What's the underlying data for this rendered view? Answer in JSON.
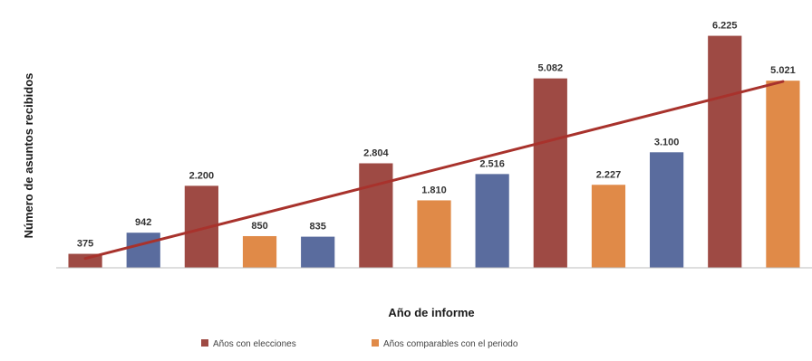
{
  "chart_data": {
    "type": "bar",
    "title": "",
    "xlabel": "Año de informe",
    "ylabel": "Número de asuntos recibidos",
    "categories": [
      "",
      "",
      "",
      "",
      "",
      "",
      "",
      "",
      "",
      "",
      "",
      "",
      ""
    ],
    "values": [
      375,
      942,
      2200,
      850,
      835,
      2804,
      1810,
      2516,
      5082,
      2227,
      3100,
      6225,
      5021
    ],
    "value_labels": [
      "375",
      "942",
      "2.200",
      "850",
      "835",
      "2.804",
      "1.810",
      "2.516",
      "5.082",
      "2.227",
      "3.100",
      "6.225",
      "5.021"
    ],
    "bar_groups": [
      "elecciones",
      "otros",
      "elecciones",
      "comparables",
      "otros",
      "elecciones",
      "comparables",
      "otros",
      "elecciones",
      "comparables",
      "otros",
      "elecciones",
      "comparables"
    ],
    "ylim": [
      0,
      6700
    ],
    "trendline": {
      "start": 250,
      "end": 5000,
      "color": "#a8322c"
    },
    "grid": false,
    "legend_position": "bottom",
    "legend": [
      {
        "label": "Años con elecciones",
        "group": "elecciones"
      },
      {
        "label": "Años comparables con el periodo",
        "group": "comparables"
      }
    ],
    "colors": {
      "elecciones": "#9e4a44",
      "comparables": "#e08a48",
      "otros": "#5a6c9e"
    }
  }
}
